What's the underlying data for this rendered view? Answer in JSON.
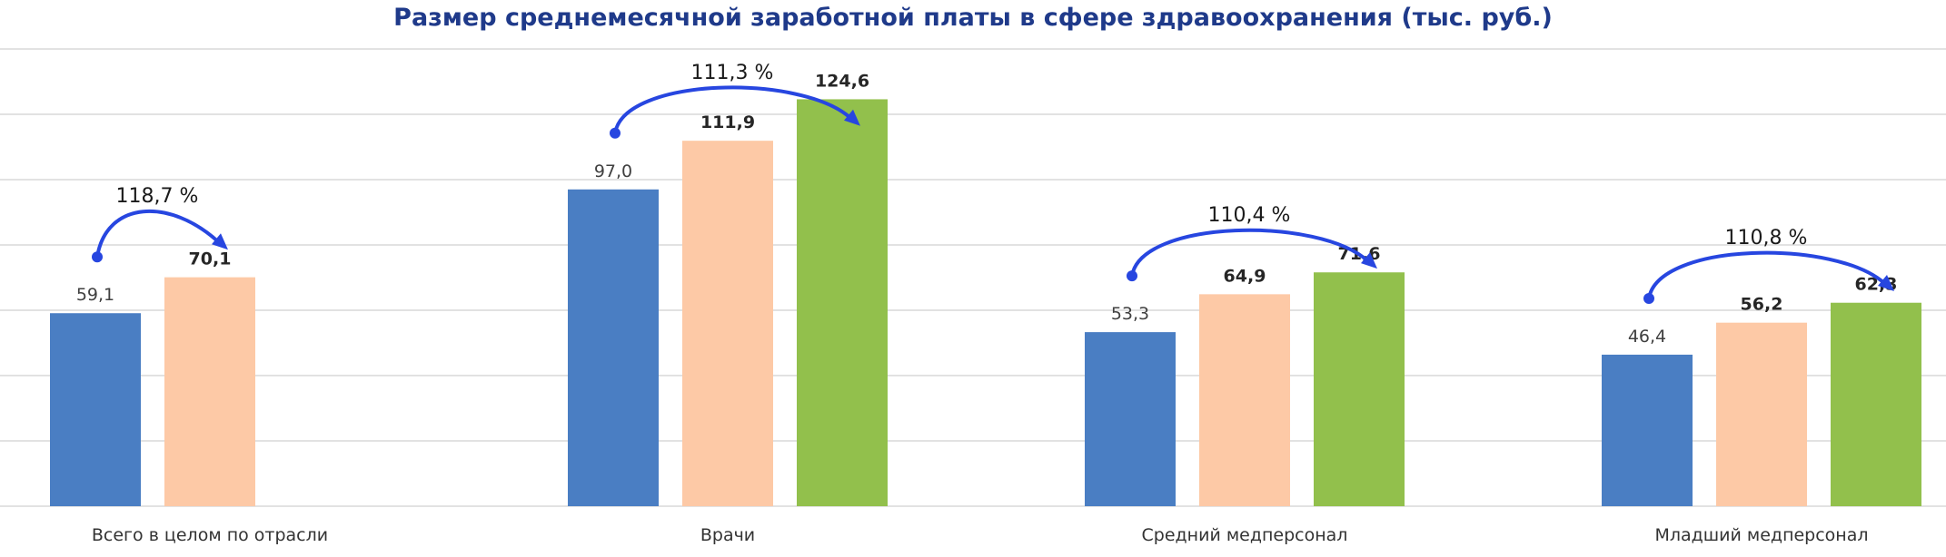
{
  "chart_data": {
    "type": "bar",
    "title": "Размер среднемесячной заработной платы в сфере здравоохранения (тыс. руб.)",
    "xlabel": "",
    "ylabel": "",
    "ylim": [
      0,
      140
    ],
    "grid": true,
    "legend": "none",
    "categories": [
      "Всего в целом по отрасли",
      "Врачи",
      "Средний медперсонал",
      "Младший медперсонал"
    ],
    "series": [
      {
        "color": "#4a7ec3",
        "values": [
          59.1,
          97.0,
          53.3,
          46.4
        ],
        "labels": [
          "59,1",
          "97,0",
          "53,3",
          "46,4"
        ],
        "label_bold": false
      },
      {
        "color": "#fdc9a6",
        "values": [
          70.1,
          111.9,
          64.9,
          56.2
        ],
        "labels": [
          "70,1",
          "111,9",
          "64,9",
          "56,2"
        ],
        "label_bold": true
      },
      {
        "color": "#92c04c",
        "values": [
          null,
          124.6,
          71.6,
          62.3
        ],
        "labels": [
          "",
          "124,6",
          "71,6",
          "62,3"
        ],
        "label_bold": true
      }
    ],
    "growth_annotations": [
      {
        "label": "118,7 %",
        "color": "#2746e0"
      },
      {
        "label": "111,3 %",
        "color": "#2746e0"
      },
      {
        "label": "110,4 %",
        "color": "#2746e0"
      },
      {
        "label": "110,8 %",
        "color": "#2746e0"
      }
    ]
  }
}
